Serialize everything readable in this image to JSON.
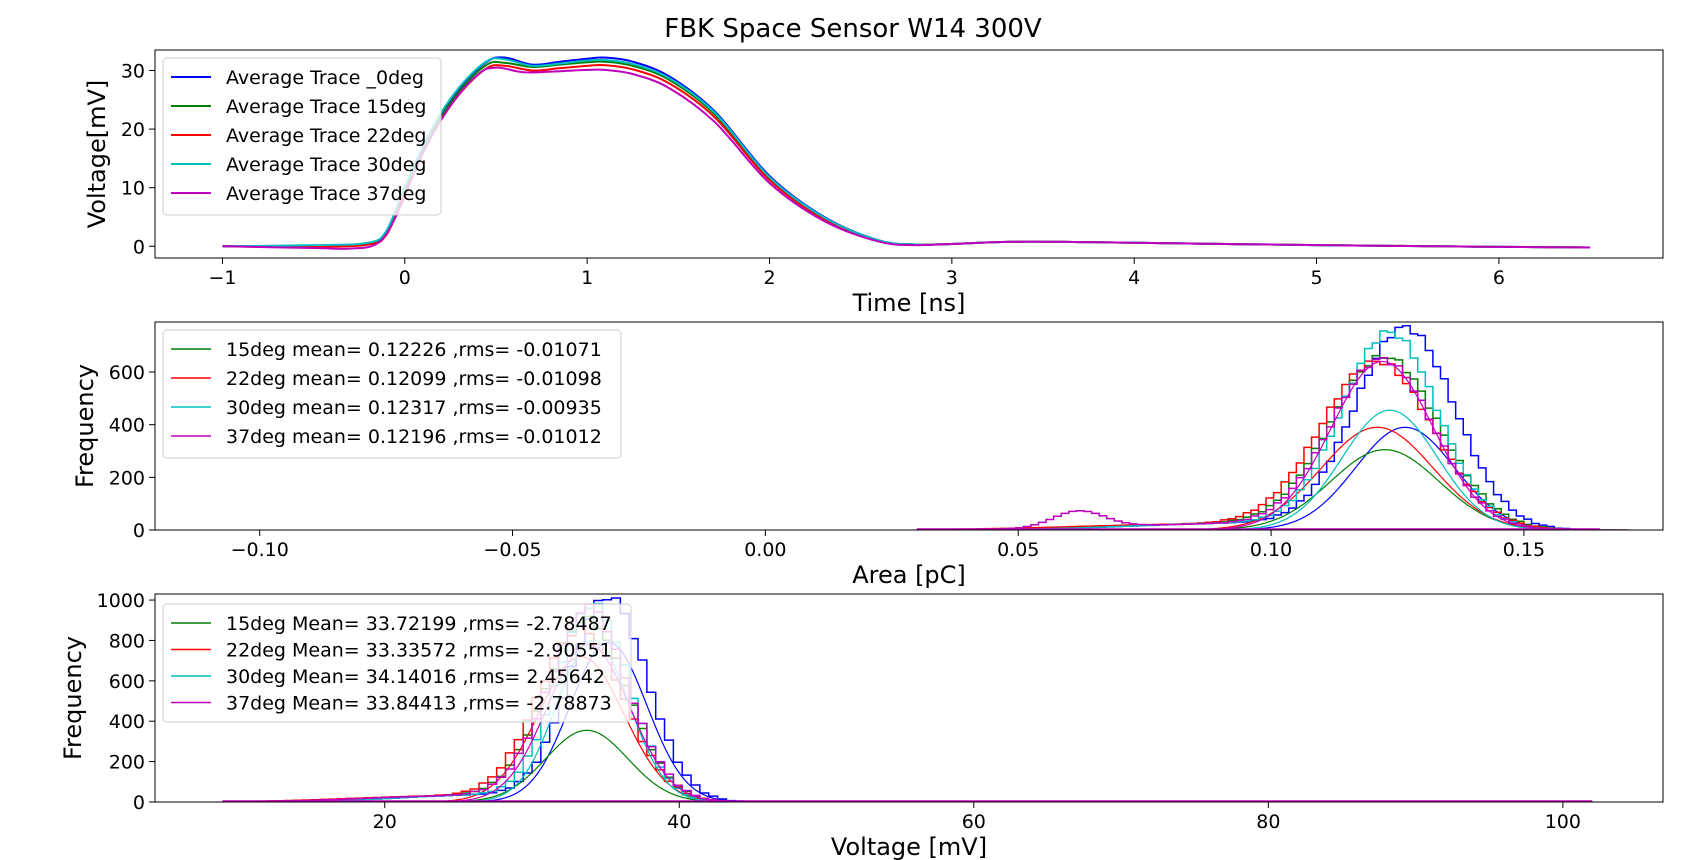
{
  "figure": {
    "title": "FBK Space Sensor W14 300V"
  },
  "chart_data": [
    {
      "type": "line",
      "xlabel": "Time [ns]",
      "ylabel": "Voltage[mV]",
      "xlim": [
        -1.37,
        6.9
      ],
      "ylim": [
        -2,
        33.5
      ],
      "xticks": [
        -1,
        0,
        1,
        2,
        3,
        4,
        5,
        6
      ],
      "xtick_labels": [
        "−1",
        "0",
        "1",
        "2",
        "3",
        "4",
        "5",
        "6"
      ],
      "yticks": [
        0,
        10,
        20,
        30
      ],
      "grid": false,
      "legend": "upper-left",
      "series": [
        {
          "name": "Average Trace _0deg",
          "color": "#0000ff",
          "x": [
            -1.0,
            -0.5,
            -0.2,
            -0.1,
            0.0,
            0.15,
            0.3,
            0.45,
            0.55,
            0.7,
            0.85,
            1.0,
            1.1,
            1.25,
            1.45,
            1.7,
            2.0,
            2.3,
            2.6,
            2.8,
            3.0,
            3.4,
            4.0,
            5.0,
            6.0,
            6.5
          ],
          "y": [
            0,
            0.1,
            0.5,
            2.5,
            10,
            20,
            27,
            31.5,
            32.2,
            31,
            31.5,
            32,
            32.2,
            31.5,
            29,
            23,
            12,
            5,
            1,
            0.3,
            0.4,
            0.8,
            0.6,
            0.2,
            -0.1,
            -0.2
          ]
        },
        {
          "name": "Average Trace 15deg",
          "color": "#007f00",
          "x": [
            -1.0,
            -0.5,
            -0.2,
            -0.1,
            0.0,
            0.15,
            0.3,
            0.45,
            0.55,
            0.7,
            0.85,
            1.0,
            1.1,
            1.25,
            1.45,
            1.7,
            2.0,
            2.3,
            2.6,
            2.8,
            3.0,
            3.4,
            4.0,
            5.0,
            6.0,
            6.5
          ],
          "y": [
            0,
            0,
            0.4,
            2.2,
            9.5,
            19.5,
            26.5,
            31,
            31.3,
            30.6,
            31,
            31.4,
            31.5,
            30.8,
            28.4,
            22.5,
            11.6,
            4.8,
            1,
            0.3,
            0.4,
            0.8,
            0.6,
            0.2,
            -0.1,
            -0.2
          ]
        },
        {
          "name": "Average Trace 22deg",
          "color": "#ff0000",
          "x": [
            -1.0,
            -0.5,
            -0.2,
            -0.1,
            0.0,
            0.15,
            0.3,
            0.45,
            0.55,
            0.7,
            0.85,
            1.0,
            1.1,
            1.25,
            1.45,
            1.7,
            2.0,
            2.3,
            2.6,
            2.8,
            3.0,
            3.4,
            4.0,
            5.0,
            6.0,
            6.5
          ],
          "y": [
            0,
            -0.1,
            0.3,
            2,
            9,
            19,
            26,
            30.4,
            30.8,
            30,
            30.4,
            30.8,
            30.9,
            30.2,
            27.8,
            22,
            11.3,
            4.6,
            0.9,
            0.3,
            0.4,
            0.8,
            0.6,
            0.2,
            -0.1,
            -0.2
          ]
        },
        {
          "name": "Average Trace 30deg",
          "color": "#00bfbf",
          "x": [
            -1.0,
            -0.5,
            -0.2,
            -0.1,
            0.0,
            0.15,
            0.3,
            0.45,
            0.55,
            0.7,
            0.85,
            1.0,
            1.1,
            1.25,
            1.45,
            1.7,
            2.0,
            2.3,
            2.6,
            2.8,
            3.0,
            3.4,
            4.0,
            5.0,
            6.0,
            6.5
          ],
          "y": [
            0,
            0.2,
            0.6,
            2.7,
            10.2,
            20.2,
            27.2,
            31.6,
            31.9,
            30.8,
            31.2,
            31.7,
            31.8,
            31.1,
            28.7,
            22.8,
            11.8,
            4.9,
            1,
            0.3,
            0.4,
            0.8,
            0.6,
            0.2,
            -0.1,
            -0.2
          ]
        },
        {
          "name": "Average Trace 37deg",
          "color": "#bf00bf",
          "x": [
            -1.0,
            -0.5,
            -0.3,
            -0.15,
            -0.05,
            0.1,
            0.25,
            0.4,
            0.5,
            0.65,
            0.8,
            1.0,
            1.1,
            1.25,
            1.45,
            1.7,
            2.0,
            2.3,
            2.6,
            2.8,
            3.0,
            3.4,
            4.0,
            5.0,
            6.0,
            6.5
          ],
          "y": [
            0,
            -0.3,
            -0.4,
            0.5,
            5,
            16,
            24,
            29.3,
            30.5,
            29.7,
            29.8,
            30.1,
            30.1,
            29.4,
            27,
            21.2,
            10.8,
            4.3,
            0.8,
            0.2,
            0.4,
            0.8,
            0.6,
            0.2,
            -0.1,
            -0.2
          ]
        }
      ]
    },
    {
      "type": "histogram",
      "xlabel": "Area [pC]",
      "ylabel": "Frequency",
      "xlim": [
        -0.1207,
        0.1775
      ],
      "ylim": [
        0,
        790
      ],
      "xticks": [
        -0.1,
        -0.05,
        0.0,
        0.05,
        0.1,
        0.15
      ],
      "xtick_labels": [
        "−0.10",
        "−0.05",
        "0.00",
        "0.05",
        "0.10",
        "0.15"
      ],
      "yticks": [
        0,
        200,
        400,
        600
      ],
      "grid": false,
      "legend": "upper-left",
      "hist_range": [
        0.03,
        0.165
      ],
      "bin_width": 0.0015,
      "series": [
        {
          "name": "",
          "color": "#0000ff",
          "mean": 0.1265,
          "sigma": 0.0098,
          "peak": 748,
          "fit_peak": 390
        },
        {
          "name": "15deg mean= 0.12226 ,rms= -0.01071",
          "color": "#007f00",
          "mean": 0.1225,
          "sigma": 0.0107,
          "peak": 640,
          "fit_peak": 305
        },
        {
          "name": "22deg mean= 0.12099 ,rms= -0.01098",
          "color": "#ff0000",
          "mean": 0.121,
          "sigma": 0.011,
          "peak": 622,
          "fit_peak": 390
        },
        {
          "name": "30deg mean= 0.12317 ,rms= -0.00935",
          "color": "#00bfbf",
          "mean": 0.1235,
          "sigma": 0.0094,
          "peak": 730,
          "fit_peak": 455
        },
        {
          "name": "37deg mean= 0.12196 ,rms= -0.01012",
          "color": "#bf00bf",
          "mean": 0.122,
          "sigma": 0.0101,
          "peak": 630,
          "fit_peak": 640
        }
      ]
    },
    {
      "type": "histogram",
      "xlabel": "Voltage [mV]",
      "ylabel": "Frequency",
      "xlim": [
        4.4,
        106.8
      ],
      "ylim": [
        0,
        1030
      ],
      "xticks": [
        20,
        40,
        60,
        80,
        100
      ],
      "xtick_labels": [
        "20",
        "40",
        "60",
        "80",
        "100"
      ],
      "yticks": [
        0,
        200,
        400,
        600,
        800,
        1000
      ],
      "grid": false,
      "legend": "upper-left",
      "hist_range": [
        9,
        102
      ],
      "bin_width": 0.6,
      "series": [
        {
          "name": "",
          "color": "#0000ff",
          "mean": 35.2,
          "sigma": 2.6,
          "peak": 990,
          "fit_peak": 790
        },
        {
          "name": "15deg Mean= 33.72199 ,rms= -2.78487",
          "color": "#007f00",
          "mean": 33.72,
          "sigma": 2.78,
          "peak": 880,
          "fit_peak": 355
        },
        {
          "name": "22deg Mean= 33.33572 ,rms= -2.90551",
          "color": "#ff0000",
          "mean": 33.34,
          "sigma": 2.9,
          "peak": 830,
          "fit_peak": 720
        },
        {
          "name": "30deg Mean= 34.14016 ,rms= 2.45642",
          "color": "#00bfbf",
          "mean": 34.14,
          "sigma": 2.46,
          "peak": 950,
          "fit_peak": 800
        },
        {
          "name": "37deg Mean= 33.84413 ,rms= -2.78873",
          "color": "#bf00bf",
          "mean": 33.84,
          "sigma": 2.79,
          "peak": 860,
          "fit_peak": 780
        }
      ]
    }
  ]
}
